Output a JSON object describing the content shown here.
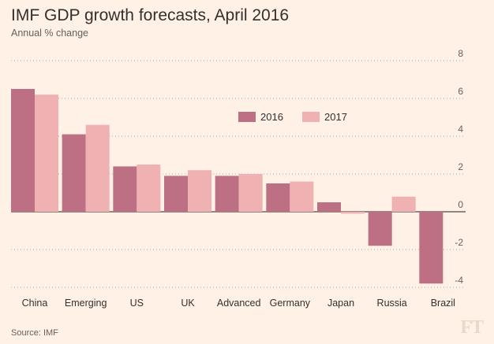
{
  "header": {
    "title": "IMF GDP growth forecasts, April 2016",
    "subtitle": "Annual % change"
  },
  "footer": {
    "source": "Source: IMF",
    "logo": "FT"
  },
  "colors": {
    "background": "#fff1e5",
    "series_2016": "#bd6f83",
    "series_2017": "#efb1b1",
    "grid": "#b7aca2"
  },
  "chart_data": {
    "type": "bar",
    "categories": [
      "China",
      "Emerging",
      "US",
      "UK",
      "Advanced",
      "Germany",
      "Japan",
      "Russia",
      "Brazil"
    ],
    "series": [
      {
        "name": "2016",
        "values": [
          6.5,
          4.1,
          2.4,
          1.9,
          1.9,
          1.5,
          0.5,
          -1.8,
          -3.8
        ]
      },
      {
        "name": "2017",
        "values": [
          6.2,
          4.6,
          2.5,
          2.2,
          2.0,
          1.6,
          -0.1,
          0.8,
          0.0
        ]
      }
    ],
    "ylim": [
      -4,
      8
    ],
    "yticks": [
      8,
      6,
      4,
      2,
      0,
      -2,
      -4
    ],
    "ytick_labels": [
      "8",
      "6",
      "4",
      "2",
      "0",
      "-2",
      "-4"
    ],
    "grid": true,
    "legend": {
      "position": "upper-middle",
      "entries": [
        "2016",
        "2017"
      ]
    },
    "title": "IMF GDP growth forecasts, April 2016",
    "ylabel": "Annual % change",
    "xlabel": ""
  }
}
